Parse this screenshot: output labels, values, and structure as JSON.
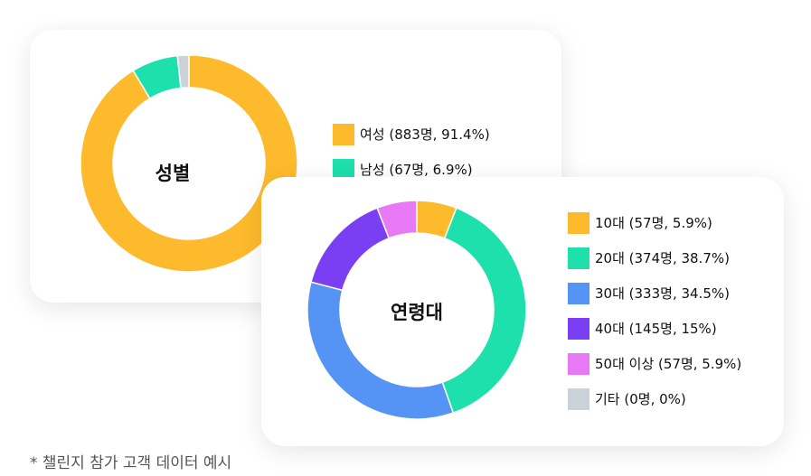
{
  "chart_data": [
    {
      "type": "pie",
      "center_label": "성별",
      "categories": [
        "여성 (883명, 91.4%)",
        "남성 (67명, 6.9%)",
        ""
      ],
      "values": [
        91.4,
        6.9,
        1.7
      ],
      "colors": [
        "#FDBA2C",
        "#1DE0AC",
        "#CBD2D9"
      ],
      "legend": [
        {
          "label": "여성 (883명, 91.4%)",
          "color": "#FDBA2C"
        },
        {
          "label": "남성 (67명, 6.9%)",
          "color": "#1DE0AC"
        }
      ]
    },
    {
      "type": "pie",
      "center_label": "연령대",
      "categories": [
        "10대 (57명, 5.9%)",
        "20대 (374명, 38.7%)",
        "30대 (333명, 34.5%)",
        "40대 (145명, 15%)",
        "50대 이상 (57명, 5.9%)",
        "기타 (0명, 0%)"
      ],
      "values": [
        5.9,
        38.7,
        34.5,
        15,
        5.9,
        0
      ],
      "colors": [
        "#FDBA2C",
        "#1DE0AC",
        "#5593F4",
        "#7B3FF3",
        "#E879F6",
        "#CBD2D9"
      ],
      "legend": [
        {
          "label": "10대 (57명, 5.9%)",
          "color": "#FDBA2C"
        },
        {
          "label": "20대 (374명, 38.7%)",
          "color": "#1DE0AC"
        },
        {
          "label": "30대 (333명, 34.5%)",
          "color": "#5593F4"
        },
        {
          "label": "40대 (145명, 15%)",
          "color": "#7B3FF3"
        },
        {
          "label": "50대 이상 (57명, 5.9%)",
          "color": "#E879F6"
        },
        {
          "label": "기타 (0명, 0%)",
          "color": "#CBD2D9"
        }
      ]
    }
  ],
  "footnote": "* 챌린지 참가 고객 데이터 예시"
}
